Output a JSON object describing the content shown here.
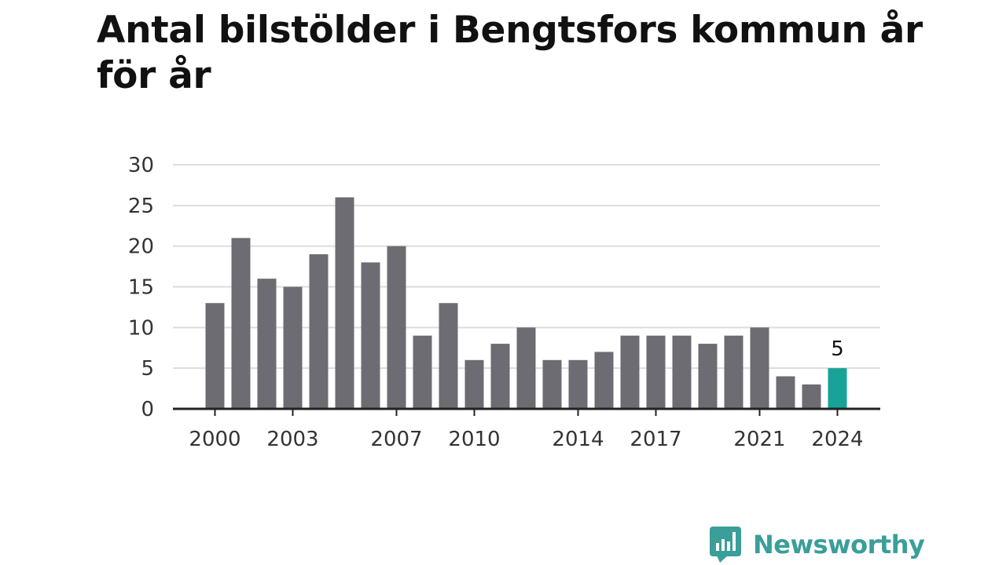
{
  "title": "Antal bilstölder i Bengtsfors kommun år för år",
  "brand": {
    "name": "Newsworthy",
    "logo_icon": "newsworthy-chat-bars-icon",
    "color": "#3a9e99"
  },
  "colors": {
    "bar": "#6d6c72",
    "highlight": "#17a398",
    "grid": "#dddddd",
    "axis": "#222222"
  },
  "chart_data": {
    "type": "bar",
    "title": "Antal bilstölder i Bengtsfors kommun år för år",
    "xlabel": "",
    "ylabel": "",
    "categories": [
      2000,
      2001,
      2002,
      2003,
      2004,
      2005,
      2006,
      2007,
      2008,
      2009,
      2010,
      2011,
      2012,
      2013,
      2014,
      2015,
      2016,
      2017,
      2018,
      2019,
      2020,
      2021,
      2022,
      2023,
      2024
    ],
    "values": [
      13,
      21,
      16,
      15,
      19,
      26,
      18,
      20,
      9,
      13,
      6,
      8,
      10,
      6,
      6,
      7,
      9,
      9,
      9,
      8,
      9,
      10,
      4,
      3,
      5
    ],
    "x_tick_labels": [
      "2000",
      "2003",
      "2007",
      "2010",
      "2014",
      "2017",
      "2021",
      "2024"
    ],
    "y_ticks": [
      0,
      5,
      10,
      15,
      20,
      25,
      30
    ],
    "ylim": [
      0,
      30
    ],
    "grid": true,
    "legend": "none",
    "highlight": {
      "category": 2024,
      "label": "5"
    }
  }
}
